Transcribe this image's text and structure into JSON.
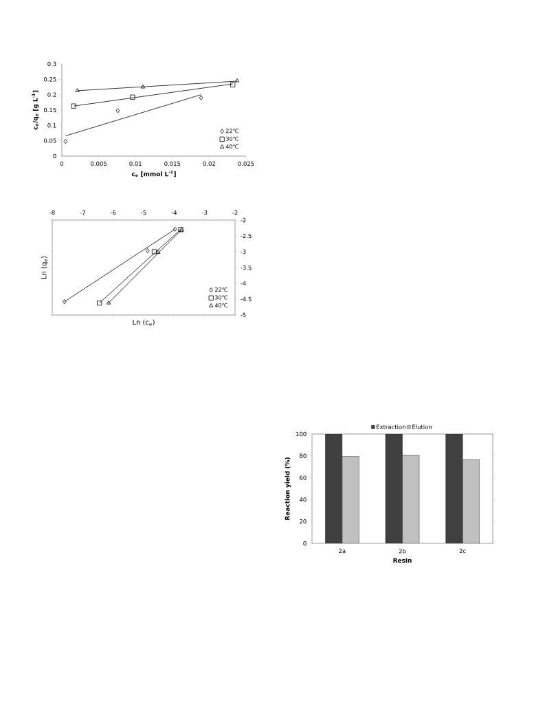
{
  "chart_data": [
    {
      "type": "scatter",
      "xlabel": "c$_{e}$ [mmol L$^{-1}$]",
      "ylabel": "c$_{e}$/q$_{e}$ [g L$^{-1}$]",
      "xlim": [
        0,
        0.025
      ],
      "ylim": [
        0,
        0.3
      ],
      "xticks": [
        0,
        0.005,
        0.01,
        0.015,
        0.02,
        0.025
      ],
      "yticks": [
        0,
        0.05,
        0.1,
        0.15,
        0.2,
        0.25,
        0.3
      ],
      "legend": "bottom right",
      "series": [
        {
          "name": "22℃",
          "type": "scatter",
          "marker": "diamond",
          "color": "#000000",
          "x": [
            0.0005,
            0.0076,
            0.0189
          ],
          "values": [
            0.048,
            0.148,
            0.19
          ]
        },
        {
          "name": "30℃",
          "type": "scatter",
          "marker": "square",
          "color": "#000000",
          "x": [
            0.0016,
            0.0096,
            0.0232
          ],
          "values": [
            0.163,
            0.192,
            0.232
          ]
        },
        {
          "name": "40℃",
          "type": "scatter",
          "marker": "triangle",
          "color": "#000000",
          "x": [
            0.0021,
            0.011,
            0.0238
          ],
          "values": [
            0.213,
            0.225,
            0.245
          ]
        },
        {
          "type": "line",
          "color": "#000000",
          "x": [
            0.0005,
            0.0189
          ],
          "values": [
            0.066,
            0.2
          ]
        },
        {
          "type": "line",
          "color": "#000000",
          "x": [
            0.0016,
            0.0232
          ],
          "values": [
            0.163,
            0.235
          ]
        },
        {
          "type": "line",
          "color": "#000000",
          "x": [
            0.0021,
            0.0238
          ],
          "values": [
            0.213,
            0.244
          ]
        }
      ]
    },
    {
      "type": "scatter",
      "xlabel": "Ln (c$_{e}$)",
      "ylabel": "Ln (q$_{e}$)",
      "xlim": [
        -8,
        -2
      ],
      "ylim": [
        -5,
        -2
      ],
      "xticks": [
        -8,
        -7,
        -6,
        -5,
        -4,
        -3,
        -2
      ],
      "yticks": [
        -5,
        -4.5,
        -4,
        -3.5,
        -3,
        -2.5,
        -2
      ],
      "legend": "bottom right",
      "series": [
        {
          "name": "22℃",
          "type": "scatter",
          "marker": "diamond",
          "color": "#000000",
          "x": [
            -7.6,
            -4.87,
            -3.97
          ],
          "values": [
            -4.58,
            -2.97,
            -2.29
          ]
        },
        {
          "name": "30℃",
          "type": "scatter",
          "marker": "square",
          "color": "#000000",
          "x": [
            -6.45,
            -4.65,
            -3.78
          ],
          "values": [
            -4.62,
            -3.0,
            -2.3
          ]
        },
        {
          "name": "40℃",
          "type": "scatter",
          "marker": "triangle",
          "color": "#000000",
          "x": [
            -6.15,
            -4.52,
            -3.76
          ],
          "values": [
            -4.62,
            -3.02,
            -2.32
          ]
        },
        {
          "type": "line",
          "color": "#000000",
          "x": [
            -7.6,
            -3.97
          ],
          "values": [
            -4.58,
            -2.29
          ]
        },
        {
          "type": "line",
          "color": "#000000",
          "x": [
            -6.45,
            -3.78
          ],
          "values": [
            -4.62,
            -2.29
          ]
        },
        {
          "type": "line",
          "color": "#000000",
          "x": [
            -6.15,
            -3.76
          ],
          "values": [
            -4.62,
            -2.31
          ]
        }
      ]
    },
    {
      "type": "bar",
      "xlabel": "Resin",
      "ylabel": "Reaction yield (%)",
      "categories": [
        "2a",
        "2b",
        "2c"
      ],
      "ylim": [
        0,
        100
      ],
      "yticks": [
        0,
        20,
        40,
        60,
        80,
        100
      ],
      "legend": "top",
      "series": [
        {
          "name": "Extraction",
          "color": "#404040",
          "values": [
            100,
            100,
            100
          ]
        },
        {
          "name": "Elution",
          "color": "#c0c0c0",
          "values": [
            79.5,
            80.5,
            76.5
          ]
        }
      ]
    }
  ]
}
